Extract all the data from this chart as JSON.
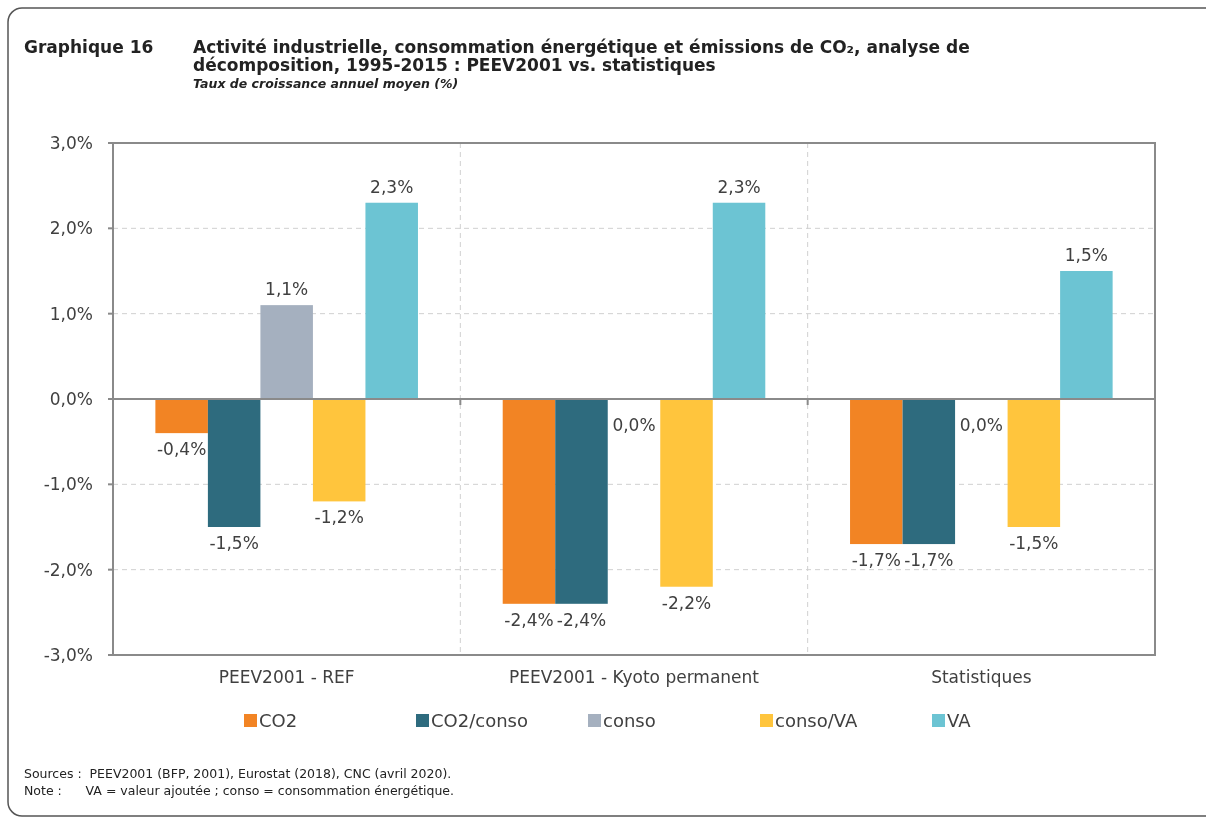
{
  "chart_data": {
    "type": "bar",
    "title": "Activité industrielle, consommation énergétique et émissions de CO₂, analyse de décomposition, 1995-2015 : PEEV2001 vs. statistiques",
    "subtitle": "Taux de croissance annuel moyen (%)",
    "annotations": [
      "Graphique 16",
      "Sources :  PEEV2001 (BFP, 2001), Eurostat (2018), CNC (avril 2020).",
      "Note :      VA = valeur ajoutée ; conso = consommation énergétique."
    ],
    "categories": [
      "PEEV2001 - REF",
      "PEEV2001 - Kyoto permanent",
      "Statistiques"
    ],
    "series": [
      {
        "name": "CO2",
        "color": "#f28424",
        "values": [
          -0.4,
          -2.4,
          -1.7
        ],
        "value_labels": [
          "-0,4%",
          "-2,4%",
          "-1,7%"
        ]
      },
      {
        "name": "CO2/conso",
        "color": "#2e6b7e",
        "values": [
          -1.5,
          -2.4,
          -1.7
        ],
        "value_labels": [
          "-1,5%",
          "-2,4%",
          "-1,7%"
        ]
      },
      {
        "name": "conso",
        "color": "#a5b0bf",
        "values": [
          1.1,
          0.0,
          0.0
        ],
        "value_labels": [
          "1,1%",
          "0,0%",
          "0,0%"
        ]
      },
      {
        "name": "conso/VA",
        "color": "#ffc53d",
        "values": [
          -1.2,
          -2.2,
          -1.5
        ],
        "value_labels": [
          "-1,2%",
          "-2,2%",
          "-1,5%"
        ]
      },
      {
        "name": "VA",
        "color": "#6cc4d3",
        "values": [
          2.3,
          2.3,
          1.5
        ],
        "value_labels": [
          "2,3%",
          "2,3%",
          "1,5%"
        ]
      }
    ],
    "ylim": [
      -3,
      3
    ],
    "yticks": [
      {
        "value": -3,
        "label": "-3,0%"
      },
      {
        "value": -2,
        "label": "-2,0%"
      },
      {
        "value": -1,
        "label": "-1,0%"
      },
      {
        "value": 0,
        "label": "0,0%"
      },
      {
        "value": 1,
        "label": "1,0%"
      },
      {
        "value": 2,
        "label": "2,0%"
      },
      {
        "value": 3,
        "label": "3,0%"
      }
    ],
    "grid": true,
    "legend": "bottom"
  }
}
